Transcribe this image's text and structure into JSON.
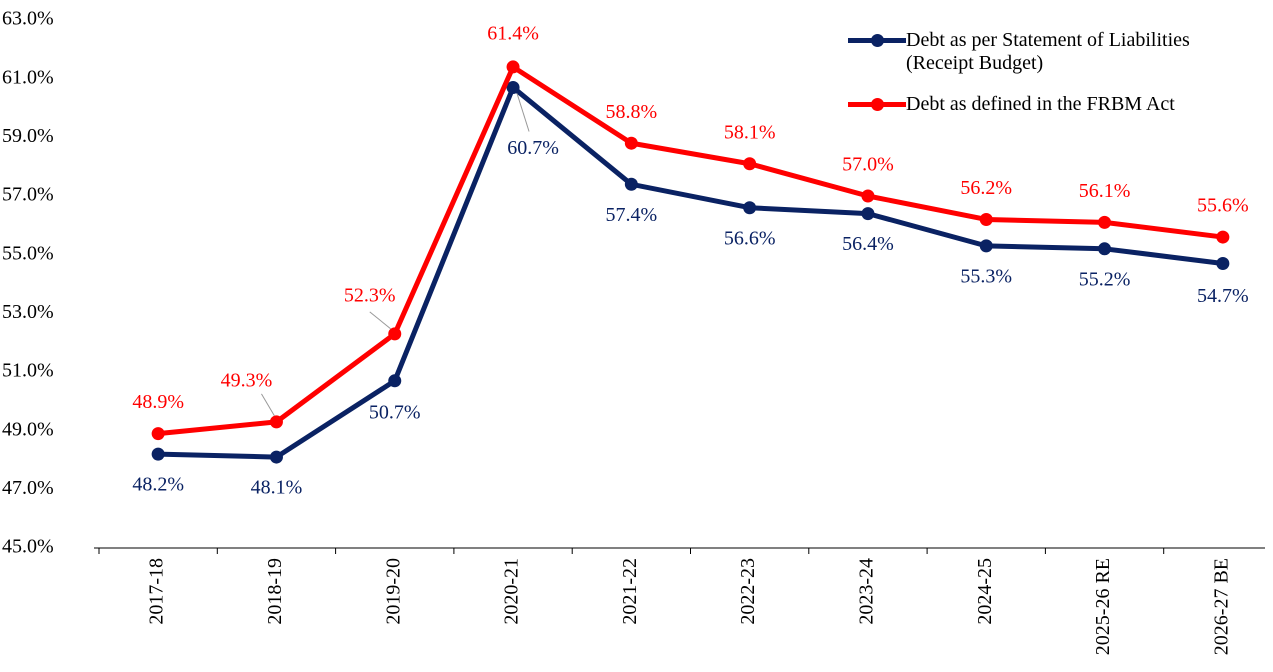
{
  "chart_data": {
    "type": "line",
    "categories": [
      "2017-18",
      "2018-19",
      "2019-20",
      "2020-21",
      "2021-22",
      "2022-23",
      "2023-24",
      "2024-25",
      "2025-26 RE",
      "2026-27 BE"
    ],
    "series": [
      {
        "name": "Debt as per Statement of Liabilities (Receipt Budget)",
        "color": "#0a2263",
        "values": [
          48.2,
          48.1,
          50.7,
          60.7,
          57.4,
          56.6,
          56.4,
          55.3,
          55.2,
          54.7
        ],
        "value_labels": [
          "48.2%",
          "48.1%",
          "50.7%",
          "60.7%",
          "57.4%",
          "56.6%",
          "56.4%",
          "55.3%",
          "55.2%",
          "54.7%"
        ]
      },
      {
        "name": "Debt as defined in the FRBM Act",
        "color": "#ff0000",
        "values": [
          48.9,
          49.3,
          52.3,
          61.4,
          58.8,
          58.1,
          57.0,
          56.2,
          56.1,
          55.6
        ],
        "value_labels": [
          "48.9%",
          "49.3%",
          "52.3%",
          "61.4%",
          "58.8%",
          "58.1%",
          "57.0%",
          "56.2%",
          "56.1%",
          "55.6%"
        ]
      }
    ],
    "ylim": [
      45,
      63
    ],
    "yticks": [
      {
        "value": 45,
        "label": "45.0%"
      },
      {
        "value": 47,
        "label": "47.0%"
      },
      {
        "value": 49,
        "label": "49.0%"
      },
      {
        "value": 51,
        "label": "51.0%"
      },
      {
        "value": 53,
        "label": "53.0%"
      },
      {
        "value": 55,
        "label": "55.0%"
      },
      {
        "value": 57,
        "label": "57.0%"
      },
      {
        "value": 59,
        "label": "59.0%"
      },
      {
        "value": 61,
        "label": "61.0%"
      },
      {
        "value": 63,
        "label": "63.0%"
      }
    ],
    "grid": false,
    "legend": "upper right"
  }
}
